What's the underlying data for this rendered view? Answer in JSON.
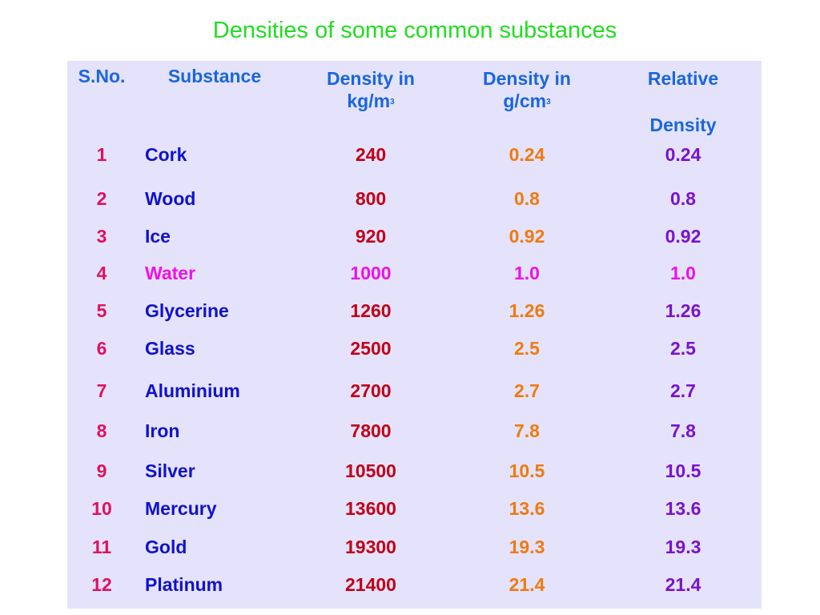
{
  "title": "Densities of some common substances",
  "headers": {
    "sno": "S.No.",
    "substance": "Substance",
    "kg_main": "Density in",
    "kg_unit": "kg/m",
    "kg_sup": "3",
    "g_main": "Density in",
    "g_unit": "g/cm",
    "g_sup": "3",
    "rel_1": "Relative",
    "rel_2": "Density"
  },
  "rows": [
    {
      "no": "1",
      "substance": "Cork",
      "kg_m3": "240",
      "g_cm3": "0.24",
      "relative": "0.24"
    },
    {
      "no": "2",
      "substance": "Wood",
      "kg_m3": "800",
      "g_cm3": "0.8",
      "relative": "0.8"
    },
    {
      "no": "3",
      "substance": "Ice",
      "kg_m3": "920",
      "g_cm3": "0.92",
      "relative": "0.92"
    },
    {
      "no": "4",
      "substance": "Water",
      "kg_m3": "1000",
      "g_cm3": "1.0",
      "relative": "1.0"
    },
    {
      "no": "5",
      "substance": "Glycerine",
      "kg_m3": "1260",
      "g_cm3": "1.26",
      "relative": "1.26"
    },
    {
      "no": "6",
      "substance": "Glass",
      "kg_m3": "2500",
      "g_cm3": "2.5",
      "relative": "2.5"
    },
    {
      "no": "7",
      "substance": "Aluminium",
      "kg_m3": "2700",
      "g_cm3": "2.7",
      "relative": "2.7"
    },
    {
      "no": "8",
      "substance": "Iron",
      "kg_m3": "7800",
      "g_cm3": "7.8",
      "relative": "7.8"
    },
    {
      "no": "9",
      "substance": "Silver",
      "kg_m3": "10500",
      "g_cm3": "10.5",
      "relative": "10.5"
    },
    {
      "no": "10",
      "substance": "Mercury",
      "kg_m3": "13600",
      "g_cm3": "13.6",
      "relative": "13.6"
    },
    {
      "no": "11",
      "substance": "Gold",
      "kg_m3": "19300",
      "g_cm3": "19.3",
      "relative": "19.3"
    },
    {
      "no": "12",
      "substance": "Platinum",
      "kg_m3": "21400",
      "g_cm3": "21.4",
      "relative": "21.4"
    }
  ],
  "colors": {
    "title": "#22dd22",
    "panel_bg": "#e4e3fb",
    "header_text": "#1a66dd",
    "serial_number": "#e01060",
    "substance": "#1111cc",
    "density_kg": "#c00018",
    "density_g": "#f07a10",
    "relative": "#7a12cc",
    "water_highlight": "#ee10ee"
  }
}
